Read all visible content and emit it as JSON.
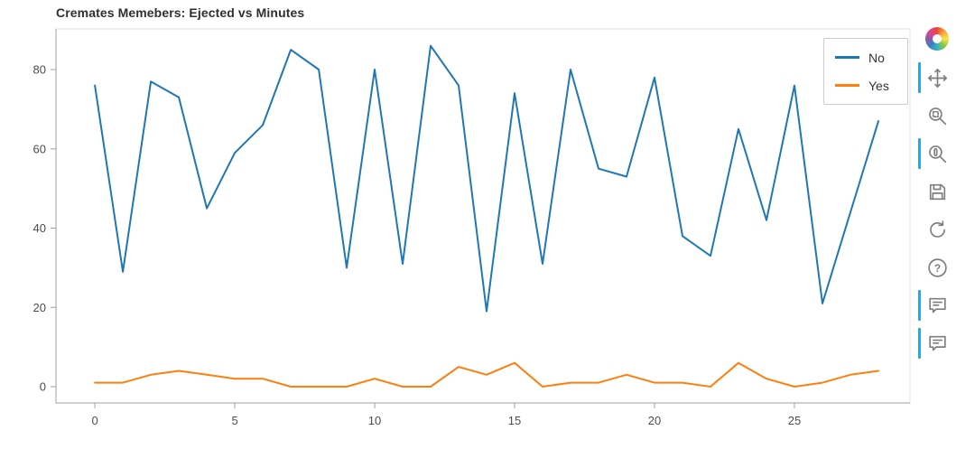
{
  "title": "Cremates Memebers: Ejected vs Minutes",
  "chart_data": {
    "type": "line",
    "title": "Cremates Memebers: Ejected vs Minutes",
    "xlabel": "",
    "ylabel": "",
    "xlim": [
      -1.39,
      29.13
    ],
    "ylim": [
      -4.1,
      90.26
    ],
    "x_ticks": [
      0,
      5,
      10,
      15,
      20,
      25
    ],
    "y_ticks": [
      0,
      20,
      40,
      60,
      80
    ],
    "grid": false,
    "legend_position": "top_right",
    "x": [
      0,
      1,
      2,
      3,
      4,
      5,
      6,
      7,
      8,
      9,
      10,
      11,
      12,
      13,
      14,
      15,
      16,
      17,
      18,
      19,
      20,
      21,
      22,
      23,
      24,
      25,
      26,
      27,
      28
    ],
    "series": [
      {
        "name": "No",
        "color": "#1f77b4",
        "values": [
          76,
          29,
          77,
          73,
          45,
          59,
          66,
          85,
          80,
          30,
          80,
          31,
          86,
          76,
          19,
          74,
          31,
          80,
          55,
          53,
          78,
          38,
          33,
          65,
          42,
          76,
          21,
          44,
          67
        ]
      },
      {
        "name": "Yes",
        "color": "#ff7f0e",
        "values": [
          1,
          1,
          3,
          4,
          3,
          2,
          2,
          0,
          0,
          0,
          2,
          0,
          0,
          5,
          3,
          6,
          0,
          1,
          1,
          3,
          1,
          1,
          0,
          6,
          2,
          0,
          1,
          3,
          4
        ]
      }
    ]
  },
  "legend": {
    "items": [
      {
        "label": "No",
        "color": "#1f77b4"
      },
      {
        "label": "Yes",
        "color": "#ff7f0e"
      }
    ]
  },
  "toolbar": {
    "logo": "bokeh-logo",
    "tools": [
      {
        "name": "pan",
        "active": true
      },
      {
        "name": "box-zoom",
        "active": false
      },
      {
        "name": "wheel-zoom",
        "active": true
      },
      {
        "name": "save",
        "active": false
      },
      {
        "name": "reset",
        "active": false
      },
      {
        "name": "help",
        "active": false
      },
      {
        "name": "hover-no",
        "active": true
      },
      {
        "name": "hover-yes",
        "active": true
      }
    ]
  },
  "colors": {
    "line_no": "#1f77b4",
    "line_yes": "#ff7f0e",
    "active_tool_indicator": "#26aae1",
    "axis": "#a0a0a0",
    "tick_label": "#4d4d4d",
    "title": "#303030"
  }
}
